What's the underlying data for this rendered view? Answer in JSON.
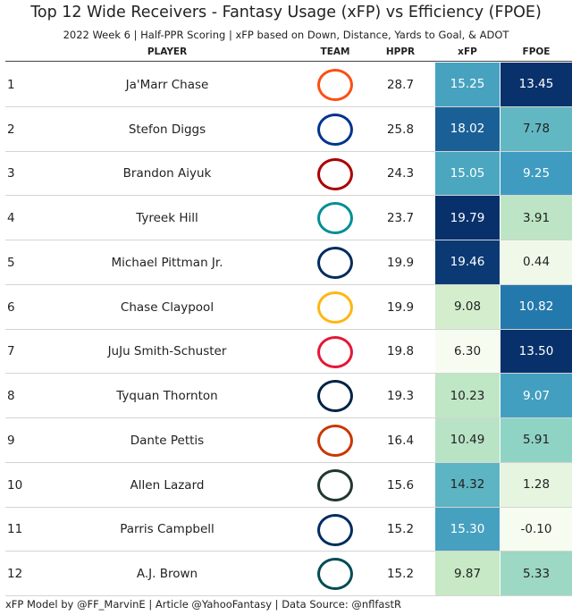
{
  "header": {
    "title": "Top 12 Wide Receivers - Fantasy Usage (xFP) vs Efficiency (FPOE)",
    "subtitle": "2022 Week 6 | Half-PPR Scoring | xFP based on Down, Distance, Yards to Goal, & ADOT"
  },
  "table": {
    "columns": [
      "PLAYER",
      "TEAM",
      "HPPR",
      "xFP",
      "FPOE"
    ],
    "rows": [
      [
        "1",
        "Ja'Marr Chase",
        "28.7",
        "15.25",
        "13.45"
      ],
      [
        "2",
        "Stefon Diggs",
        "25.8",
        "18.02",
        "7.78"
      ],
      [
        "3",
        "Brandon Aiyuk",
        "24.3",
        "15.05",
        "9.25"
      ],
      [
        "4",
        "Tyreek Hill",
        "23.7",
        "19.79",
        "3.91"
      ],
      [
        "5",
        "Michael Pittman Jr.",
        "19.9",
        "19.46",
        "0.44"
      ],
      [
        "6",
        "Chase Claypool",
        "19.9",
        "9.08",
        "10.82"
      ],
      [
        "7",
        "JuJu Smith-Schuster",
        "19.8",
        "6.30",
        "13.50"
      ],
      [
        "8",
        "Tyquan Thornton",
        "19.3",
        "10.23",
        "9.07"
      ],
      [
        "9",
        "Dante Pettis",
        "16.4",
        "10.49",
        "5.91"
      ],
      [
        "10",
        "Allen Lazard",
        "15.6",
        "14.32",
        "1.28"
      ],
      [
        "11",
        "Parris Campbell",
        "15.2",
        "15.30",
        "-0.10"
      ],
      [
        "12",
        "A.J. Brown",
        "15.2",
        "9.87",
        "5.33"
      ]
    ]
  },
  "footer": "xFP Model by @FF_MarvinE | Article @YahooFantasy | Data Source: @nflfastR"
}
